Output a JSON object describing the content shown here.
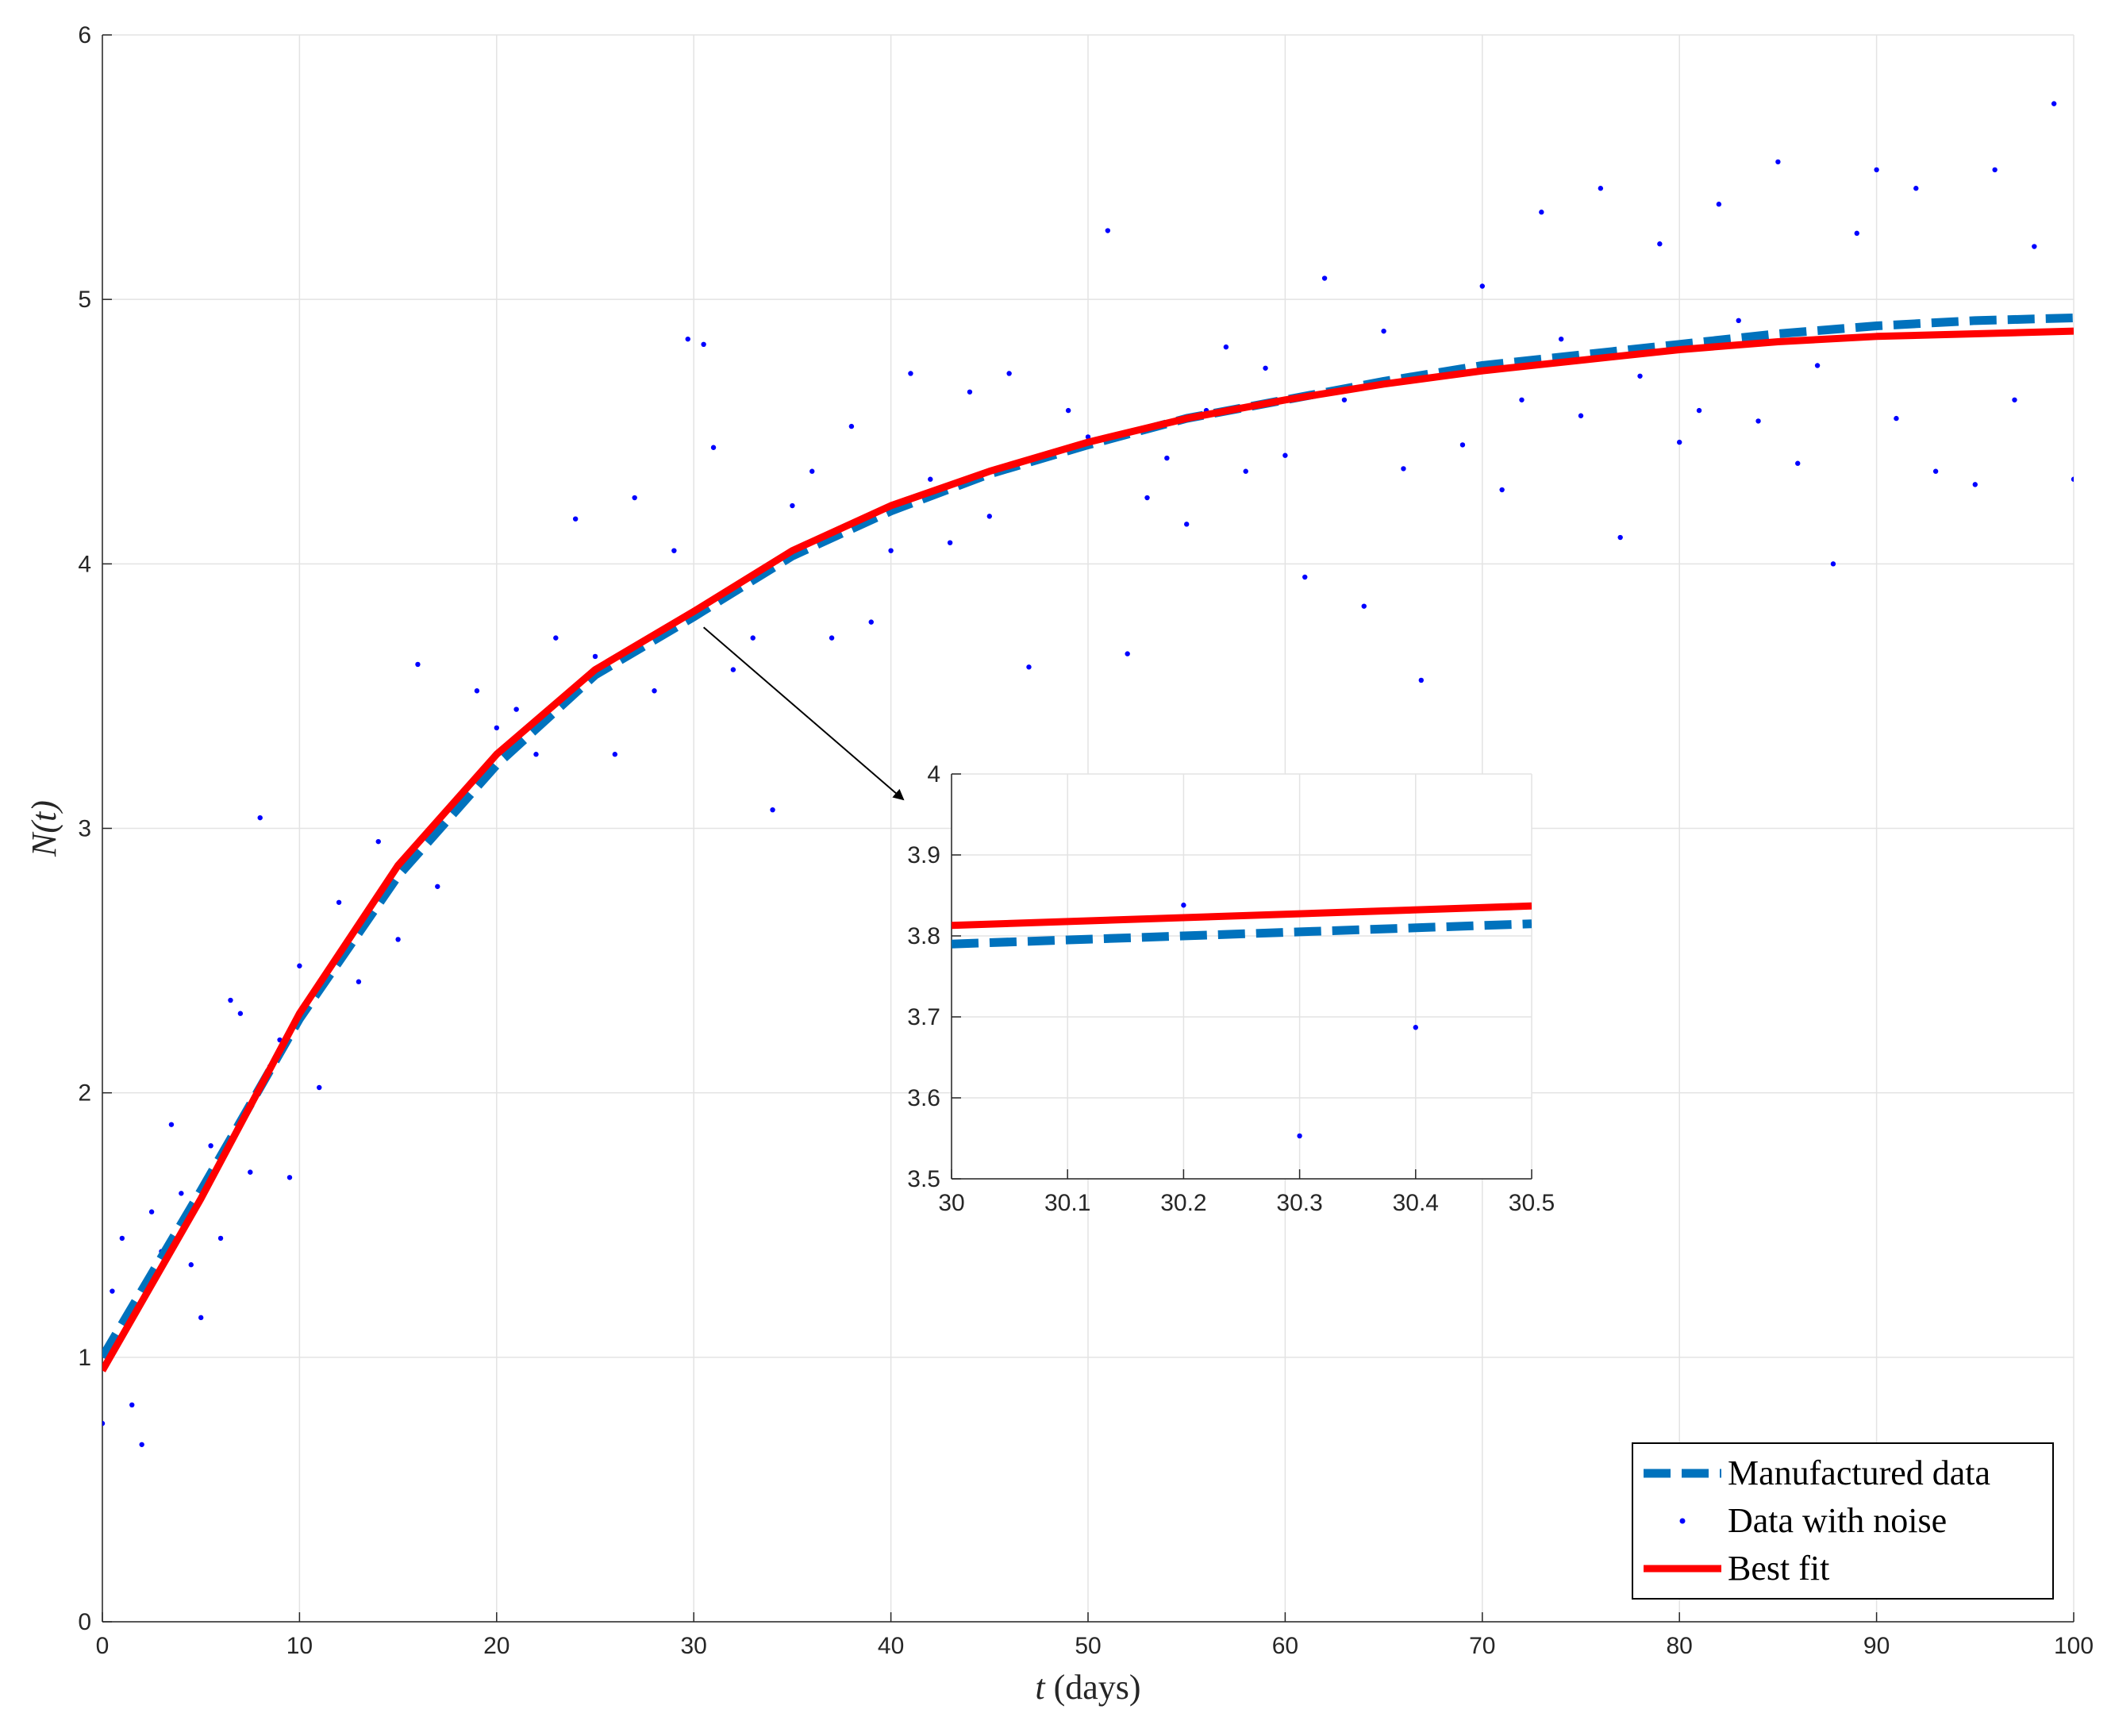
{
  "chart_data": [
    {
      "type": "line",
      "role": "main",
      "xlabel_italic": "t",
      "xlabel_rest": " (days)",
      "ylabel_italic": "N(t)",
      "xlim": [
        0,
        100
      ],
      "ylim": [
        0,
        6
      ],
      "xticks": [
        0,
        10,
        20,
        30,
        40,
        50,
        60,
        70,
        80,
        90,
        100
      ],
      "yticks": [
        0,
        1,
        2,
        3,
        4,
        5,
        6
      ],
      "grid": true,
      "legend_position": "bottom-right",
      "colors": {
        "manufactured": "#0072BD",
        "noise": "#0000FF",
        "best_fit": "#FF0000",
        "grid": "#E3E3E3",
        "axis": "#262626"
      },
      "series": [
        {
          "name": "Manufactured data",
          "style": "dashed",
          "x": [
            0,
            5,
            10,
            15,
            20,
            25,
            30,
            35,
            40,
            45,
            50,
            55,
            60,
            65,
            70,
            75,
            80,
            85,
            90,
            95,
            100
          ],
          "y": [
            1.0,
            1.63,
            2.28,
            2.82,
            3.24,
            3.58,
            3.8,
            4.03,
            4.2,
            4.34,
            4.45,
            4.55,
            4.62,
            4.69,
            4.75,
            4.79,
            4.83,
            4.87,
            4.9,
            4.92,
            4.93
          ]
        },
        {
          "name": "Best fit",
          "style": "solid",
          "x": [
            0,
            5,
            10,
            15,
            20,
            25,
            30,
            35,
            40,
            45,
            50,
            55,
            60,
            65,
            70,
            75,
            80,
            85,
            90,
            95,
            100
          ],
          "y": [
            0.95,
            1.6,
            2.3,
            2.86,
            3.28,
            3.6,
            3.82,
            4.05,
            4.22,
            4.35,
            4.46,
            4.55,
            4.62,
            4.68,
            4.73,
            4.77,
            4.81,
            4.84,
            4.86,
            4.87,
            4.88
          ]
        },
        {
          "name": "Data with noise",
          "style": "dots",
          "x": [
            0,
            0.5,
            1,
            1.5,
            2,
            2.5,
            3,
            3.5,
            4,
            4.5,
            5,
            5.5,
            6,
            6.5,
            7,
            7.5,
            8,
            8.5,
            9,
            9.5,
            10,
            11,
            12,
            13,
            14,
            15,
            16,
            17,
            18,
            19,
            20,
            21,
            22,
            23,
            24,
            25,
            26,
            27,
            28,
            29,
            29.7,
            30.5,
            31,
            32,
            33,
            34,
            35,
            36,
            37,
            38,
            39,
            40,
            41,
            42,
            43,
            44,
            45,
            46,
            47,
            48,
            49,
            50,
            51,
            52,
            53,
            54,
            55,
            56,
            57,
            58,
            59,
            60,
            61,
            62,
            63,
            64,
            65,
            66,
            66.9,
            68,
            69,
            70,
            71,
            72,
            73,
            74,
            75,
            76,
            77,
            78,
            79,
            80,
            81,
            82,
            83,
            84,
            85,
            86,
            87,
            87.8,
            89,
            90,
            91,
            92,
            93,
            94,
            95,
            96,
            97,
            98,
            99,
            100
          ],
          "y": [
            0.75,
            1.25,
            1.45,
            0.82,
            0.67,
            1.55,
            1.4,
            1.88,
            1.62,
            1.35,
            1.15,
            1.8,
            1.45,
            2.35,
            2.3,
            1.7,
            3.04,
            2.1,
            2.2,
            1.68,
            2.48,
            2.02,
            2.72,
            2.42,
            2.95,
            2.58,
            3.62,
            2.78,
            3.1,
            3.52,
            3.38,
            3.45,
            3.28,
            3.72,
            4.17,
            3.65,
            3.28,
            4.25,
            3.52,
            4.05,
            4.85,
            4.83,
            4.44,
            3.6,
            3.72,
            3.07,
            4.22,
            4.35,
            3.72,
            4.52,
            3.78,
            4.05,
            4.72,
            4.32,
            4.08,
            4.65,
            4.18,
            4.72,
            3.61,
            4.42,
            4.58,
            4.48,
            5.26,
            3.66,
            4.25,
            4.4,
            4.15,
            4.58,
            4.82,
            4.35,
            4.74,
            4.41,
            3.95,
            5.08,
            4.62,
            3.84,
            4.88,
            4.36,
            3.56,
            4.72,
            4.45,
            5.05,
            4.28,
            4.62,
            5.33,
            4.85,
            4.56,
            5.42,
            4.1,
            4.71,
            5.21,
            4.46,
            4.58,
            5.36,
            4.92,
            4.54,
            5.52,
            4.38,
            4.75,
            4.0,
            5.25,
            5.49,
            4.55,
            5.42,
            4.35,
            4.91,
            4.3,
            5.49,
            4.62,
            5.2,
            5.74,
            4.32
          ]
        }
      ]
    },
    {
      "type": "line",
      "role": "inset",
      "xlim": [
        30,
        30.5
      ],
      "ylim": [
        3.5,
        4
      ],
      "xticks": [
        30,
        30.1,
        30.2,
        30.3,
        30.4,
        30.5
      ],
      "yticks": [
        3.5,
        3.6,
        3.7,
        3.8,
        3.9,
        4
      ],
      "grid": true,
      "series": [
        {
          "name": "Manufactured data",
          "style": "dashed",
          "x": [
            30,
            30.5
          ],
          "y": [
            3.79,
            3.815
          ]
        },
        {
          "name": "Best fit",
          "style": "solid",
          "x": [
            30,
            30.5
          ],
          "y": [
            3.813,
            3.837
          ]
        },
        {
          "name": "Data with noise",
          "style": "dots",
          "x": [
            30.2,
            30.3,
            30.4
          ],
          "y": [
            3.838,
            3.553,
            3.687
          ]
        }
      ]
    }
  ]
}
